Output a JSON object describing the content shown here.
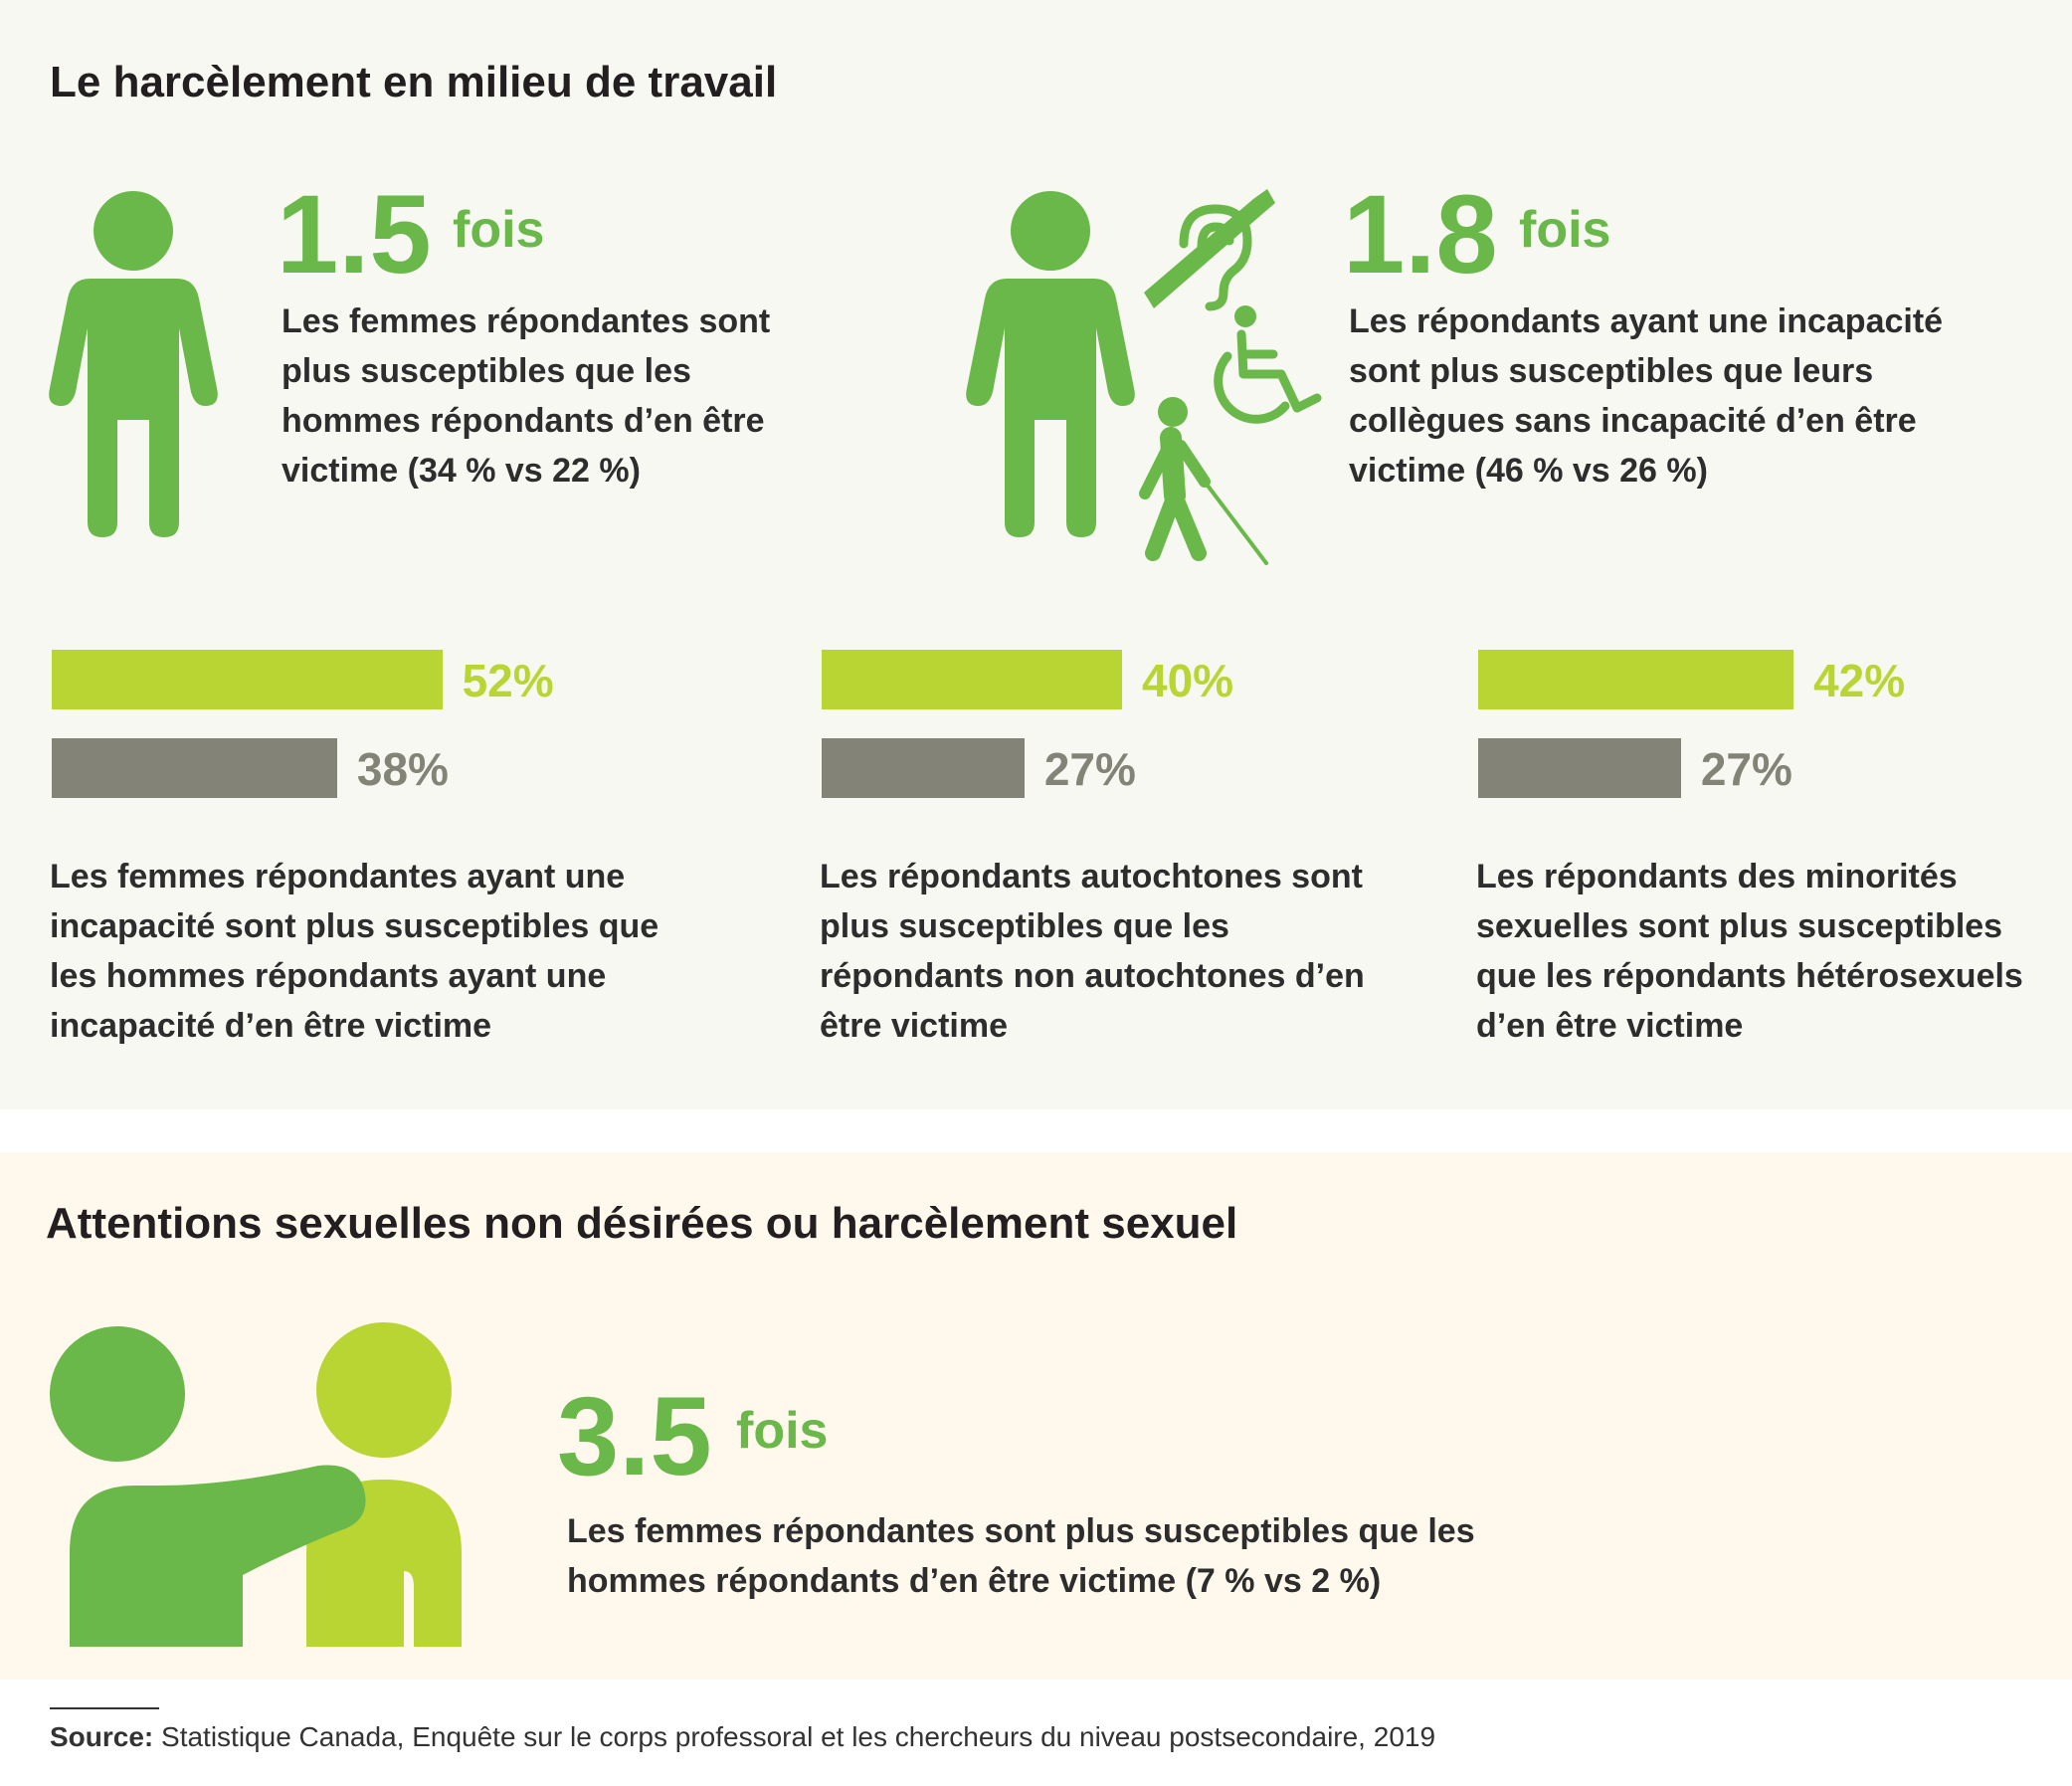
{
  "colors": {
    "green": "#6bb84a",
    "lime": "#b9d534",
    "gray": "#838477",
    "panel1_bg": "#f7f8f1",
    "panel2_bg": "#fff8ec"
  },
  "section1": {
    "title": "Le harcèlement en milieu de travail",
    "stat_women": {
      "number": "1.5",
      "unit": "fois",
      "text": "Les femmes répondantes sont plus susceptibles que les hommes répondants d’en être victime (34 % vs 22 %)"
    },
    "stat_disability": {
      "number": "1.8",
      "unit": "fois",
      "text": "Les répondants ayant une incapacité sont plus susceptibles que leurs collègues sans incapacité d’en être victime (46 % vs 26 %)"
    }
  },
  "section2": {
    "title": "Attentions sexuelles non désirées ou harcèlement sexuel",
    "stat": {
      "number": "3.5",
      "unit": "fois",
      "text": "Les femmes répondantes sont plus susceptibles que les hommes répondants d’en être victime (7 % vs 2 %)"
    }
  },
  "chart_data": [
    {
      "type": "bar",
      "values": [
        52,
        38
      ],
      "labels": [
        "52%",
        "38%"
      ],
      "caption": "Les femmes répondantes ayant une incapacité sont plus susceptibles que les hommes répondants ayant une incapacité d’en être victime"
    },
    {
      "type": "bar",
      "values": [
        40,
        27
      ],
      "labels": [
        "40%",
        "27%"
      ],
      "caption": "Les répondants autochtones sont plus susceptibles que les répondants non autochtones d’en être victime"
    },
    {
      "type": "bar",
      "values": [
        42,
        27
      ],
      "labels": [
        "42%",
        "27%"
      ],
      "caption": "Les répondants des minorités sexuelles sont plus susceptibles que les répondants hétérosexuels d’en être victime"
    }
  ],
  "source": {
    "label": "Source:",
    "text": "Statistique Canada, Enquête sur le corps professoral et les chercheurs du niveau postsecondaire, 2019"
  }
}
